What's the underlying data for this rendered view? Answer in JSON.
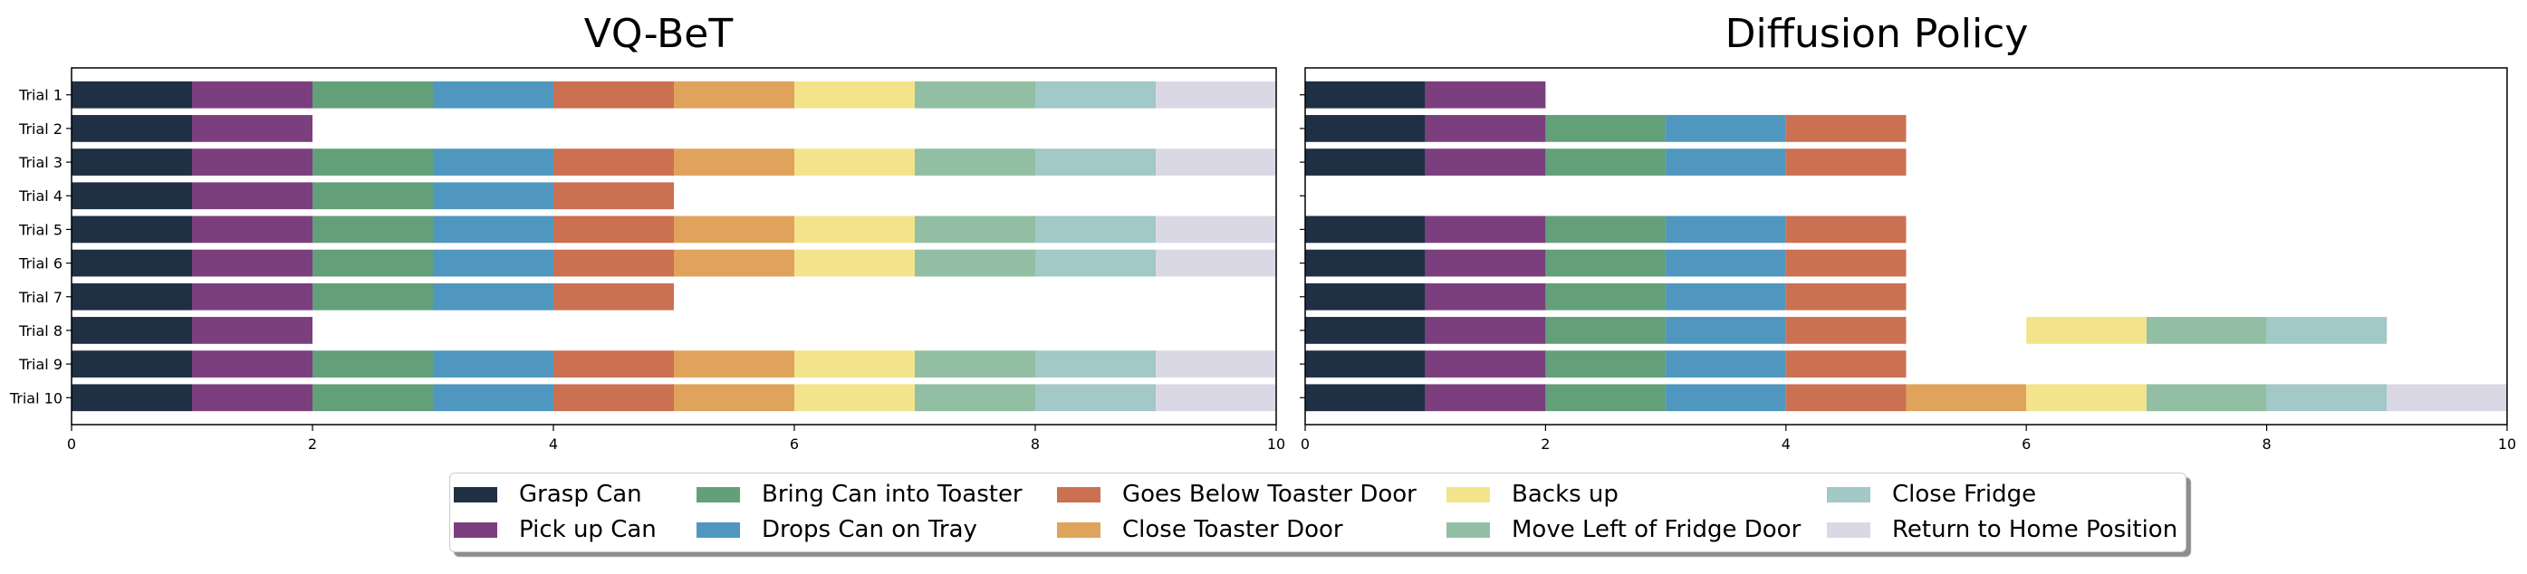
{
  "legend": [
    {
      "label": "Grasp Can",
      "color": "#1f3044"
    },
    {
      "label": "Pick up Can",
      "color": "#7b3f7e"
    },
    {
      "label": "Bring Can into Toaster",
      "color": "#63a07a"
    },
    {
      "label": "Drops Can on Tray",
      "color": "#4f97bf"
    },
    {
      "label": "Goes Below Toaster Door",
      "color": "#cc7052"
    },
    {
      "label": "Close Toaster Door",
      "color": "#e0a35c"
    },
    {
      "label": "Backs up",
      "color": "#f3e48b"
    },
    {
      "label": "Move Left of Fridge Door",
      "color": "#92bfa3"
    },
    {
      "label": "Close Fridge",
      "color": "#a2c8c7"
    },
    {
      "label": "Return to Home Position",
      "color": "#dbd8e6"
    }
  ],
  "chart_data": [
    {
      "type": "bar",
      "orientation": "horizontal-stacked",
      "title": "VQ-BeT",
      "categories": [
        "Trial 1",
        "Trial 2",
        "Trial 3",
        "Trial 4",
        "Trial 5",
        "Trial 6",
        "Trial 7",
        "Trial 8",
        "Trial 9",
        "Trial 10"
      ],
      "xlim": [
        0,
        10
      ],
      "xticks": [
        0,
        2,
        4,
        6,
        8,
        10
      ],
      "grid": false,
      "legend_position": "bottom",
      "trials": [
        [
          [
            0,
            1
          ],
          [
            1,
            2
          ],
          [
            2,
            3
          ],
          [
            3,
            4
          ],
          [
            4,
            5
          ],
          [
            5,
            6
          ],
          [
            6,
            7
          ],
          [
            7,
            8
          ],
          [
            8,
            9
          ],
          [
            9,
            10
          ]
        ],
        [
          [
            0,
            1
          ],
          [
            1,
            2
          ]
        ],
        [
          [
            0,
            1
          ],
          [
            1,
            2
          ],
          [
            2,
            3
          ],
          [
            3,
            4
          ],
          [
            4,
            5
          ],
          [
            5,
            6
          ],
          [
            6,
            7
          ],
          [
            7,
            8
          ],
          [
            8,
            9
          ],
          [
            9,
            10
          ]
        ],
        [
          [
            0,
            1
          ],
          [
            1,
            2
          ],
          [
            2,
            3
          ],
          [
            3,
            4
          ],
          [
            4,
            5
          ]
        ],
        [
          [
            0,
            1
          ],
          [
            1,
            2
          ],
          [
            2,
            3
          ],
          [
            3,
            4
          ],
          [
            4,
            5
          ],
          [
            5,
            6
          ],
          [
            6,
            7
          ],
          [
            7,
            8
          ],
          [
            8,
            9
          ],
          [
            9,
            10
          ]
        ],
        [
          [
            0,
            1
          ],
          [
            1,
            2
          ],
          [
            2,
            3
          ],
          [
            3,
            4
          ],
          [
            4,
            5
          ],
          [
            5,
            6
          ],
          [
            6,
            7
          ],
          [
            7,
            8
          ],
          [
            8,
            9
          ],
          [
            9,
            10
          ]
        ],
        [
          [
            0,
            1
          ],
          [
            1,
            2
          ],
          [
            2,
            3
          ],
          [
            3,
            4
          ],
          [
            4,
            5
          ]
        ],
        [
          [
            0,
            1
          ],
          [
            1,
            2
          ]
        ],
        [
          [
            0,
            1
          ],
          [
            1,
            2
          ],
          [
            2,
            3
          ],
          [
            3,
            4
          ],
          [
            4,
            5
          ],
          [
            5,
            6
          ],
          [
            6,
            7
          ],
          [
            7,
            8
          ],
          [
            8,
            9
          ],
          [
            9,
            10
          ]
        ],
        [
          [
            0,
            1
          ],
          [
            1,
            2
          ],
          [
            2,
            3
          ],
          [
            3,
            4
          ],
          [
            4,
            5
          ],
          [
            5,
            6
          ],
          [
            6,
            7
          ],
          [
            7,
            8
          ],
          [
            8,
            9
          ],
          [
            9,
            10
          ]
        ]
      ]
    },
    {
      "type": "bar",
      "orientation": "horizontal-stacked",
      "title": "Diffusion Policy",
      "categories": [
        "Trial 1",
        "Trial 2",
        "Trial 3",
        "Trial 4",
        "Trial 5",
        "Trial 6",
        "Trial 7",
        "Trial 8",
        "Trial 9",
        "Trial 10"
      ],
      "show_tick_labels": false,
      "xlim": [
        0,
        10
      ],
      "xticks": [
        0,
        2,
        4,
        6,
        8,
        10
      ],
      "grid": false,
      "legend_position": "bottom",
      "trials": [
        [
          [
            0,
            1
          ],
          [
            1,
            2
          ]
        ],
        [
          [
            0,
            1
          ],
          [
            1,
            2
          ],
          [
            2,
            3
          ],
          [
            3,
            4
          ],
          [
            4,
            5
          ]
        ],
        [
          [
            0,
            1
          ],
          [
            1,
            2
          ],
          [
            2,
            3
          ],
          [
            3,
            4
          ],
          [
            4,
            5
          ]
        ],
        [],
        [
          [
            0,
            1
          ],
          [
            1,
            2
          ],
          [
            2,
            3
          ],
          [
            3,
            4
          ],
          [
            4,
            5
          ]
        ],
        [
          [
            0,
            1
          ],
          [
            1,
            2
          ],
          [
            2,
            3
          ],
          [
            3,
            4
          ],
          [
            4,
            5
          ]
        ],
        [
          [
            0,
            1
          ],
          [
            1,
            2
          ],
          [
            2,
            3
          ],
          [
            3,
            4
          ],
          [
            4,
            5
          ]
        ],
        [
          [
            0,
            1
          ],
          [
            1,
            2
          ],
          [
            2,
            3
          ],
          [
            3,
            4
          ],
          [
            4,
            5
          ],
          null,
          [
            6,
            7
          ],
          [
            7,
            8
          ],
          [
            8,
            9
          ]
        ],
        [
          [
            0,
            1
          ],
          [
            1,
            2
          ],
          [
            2,
            3
          ],
          [
            3,
            4
          ],
          [
            4,
            5
          ]
        ],
        [
          [
            0,
            1
          ],
          [
            1,
            2
          ],
          [
            2,
            3
          ],
          [
            3,
            4
          ],
          [
            4,
            5
          ],
          [
            5,
            6
          ],
          [
            6,
            7
          ],
          [
            7,
            8
          ],
          [
            8,
            9
          ],
          [
            9,
            10
          ]
        ]
      ]
    }
  ]
}
